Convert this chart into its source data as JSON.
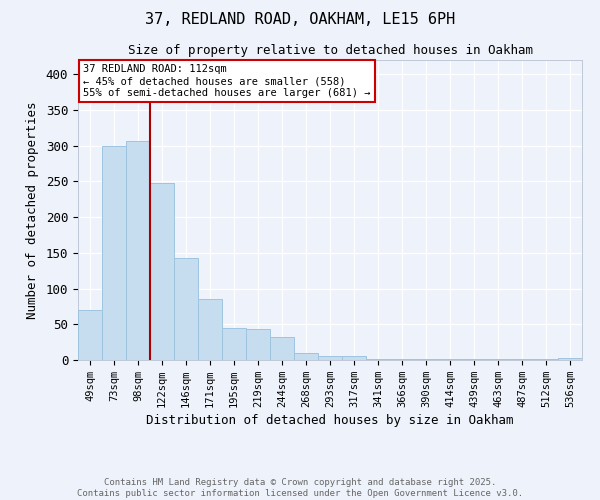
{
  "title_line1": "37, REDLAND ROAD, OAKHAM, LE15 6PH",
  "title_line2": "Size of property relative to detached houses in Oakham",
  "xlabel": "Distribution of detached houses by size in Oakham",
  "ylabel": "Number of detached properties",
  "categories": [
    "49sqm",
    "73sqm",
    "98sqm",
    "122sqm",
    "146sqm",
    "171sqm",
    "195sqm",
    "219sqm",
    "244sqm",
    "268sqm",
    "293sqm",
    "317sqm",
    "341sqm",
    "366sqm",
    "390sqm",
    "414sqm",
    "439sqm",
    "463sqm",
    "487sqm",
    "512sqm",
    "536sqm"
  ],
  "values": [
    70,
    300,
    307,
    248,
    143,
    85,
    45,
    44,
    32,
    10,
    6,
    6,
    1,
    1,
    1,
    2,
    1,
    1,
    1,
    1,
    3
  ],
  "bar_color": "#c6ddf0",
  "bar_edge_color": "#9ec4e0",
  "vline_x": 2.5,
  "vline_color": "#aa0000",
  "annotation_text": "37 REDLAND ROAD: 112sqm\n← 45% of detached houses are smaller (558)\n55% of semi-detached houses are larger (681) →",
  "annotation_box_color": "white",
  "annotation_box_edge_color": "#cc0000",
  "ylim": [
    0,
    420
  ],
  "yticks": [
    0,
    50,
    100,
    150,
    200,
    250,
    300,
    350,
    400
  ],
  "footer_line1": "Contains HM Land Registry data © Crown copyright and database right 2025.",
  "footer_line2": "Contains public sector information licensed under the Open Government Licence v3.0.",
  "background_color": "#eef2fa",
  "grid_color": "#ffffff"
}
